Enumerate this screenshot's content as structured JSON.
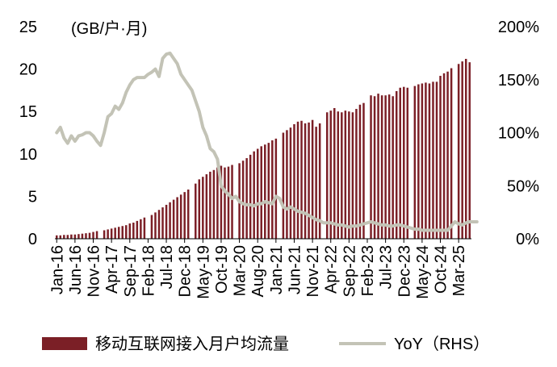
{
  "chart_data": {
    "type": "bar+line",
    "title": "",
    "unit_label": "(GB/户·月)",
    "xlabel": "",
    "ylabel_left": "",
    "ylabel_right": "",
    "ylim_left": [
      0,
      25
    ],
    "ylim_right": [
      0,
      200
    ],
    "y_ticks_left": [
      "0",
      "5",
      "10",
      "15",
      "20",
      "25"
    ],
    "y_ticks_right": [
      "0%",
      "50%",
      "100%",
      "150%",
      "200%"
    ],
    "x_tick_labels": [
      "Jan-16",
      "Jun-16",
      "Nov-16",
      "Apr-17",
      "Sep-17",
      "Feb-18",
      "Jul-18",
      "Dec-18",
      "May-19",
      "Oct-19",
      "Mar-20",
      "Aug-20",
      "Jan-21",
      "Jun-21",
      "Nov-21",
      "Apr-22",
      "Sep-22",
      "Feb-23",
      "Jul-23",
      "Dec-23",
      "May-24",
      "Oct-24",
      "Mar-25"
    ],
    "x_tick_month_index": [
      0,
      5,
      10,
      15,
      20,
      25,
      30,
      35,
      40,
      45,
      50,
      55,
      60,
      65,
      70,
      75,
      80,
      85,
      90,
      95,
      100,
      105,
      110
    ],
    "series": [
      {
        "name": "移动互联网接入月户均流量",
        "axis": "left",
        "kind": "bar",
        "color": "#7b1f26",
        "values": [
          0.4,
          0.4,
          0.45,
          0.45,
          0.5,
          0.5,
          0.55,
          0.6,
          0.65,
          0.7,
          0.8,
          0.9,
          0,
          1.0,
          1.1,
          1.2,
          1.3,
          1.4,
          1.5,
          1.6,
          1.8,
          1.9,
          2.1,
          2.3,
          2.5,
          0,
          2.8,
          3.1,
          3.4,
          3.7,
          4.0,
          4.3,
          4.6,
          4.9,
          5.2,
          5.5,
          5.8,
          0,
          6.5,
          7.0,
          7.3,
          7.6,
          7.9,
          8.1,
          8.4,
          8.6,
          8.4,
          8.5,
          8.7,
          0,
          8.9,
          9.2,
          9.5,
          9.9,
          10.3,
          10.6,
          10.9,
          11.1,
          11.3,
          11.6,
          11.8,
          0,
          12.5,
          12.8,
          13.1,
          13.5,
          13.8,
          13.9,
          13.6,
          13.7,
          14.0,
          13.2,
          13.6,
          0,
          14.9,
          15.1,
          15.4,
          15.0,
          14.9,
          15.1,
          15.0,
          14.9,
          15.3,
          15.8,
          16.0,
          0,
          16.9,
          16.8,
          17.1,
          16.9,
          16.9,
          17.0,
          16.8,
          17.4,
          17.8,
          17.9,
          17.8,
          0,
          18.0,
          18.2,
          18.3,
          18.4,
          18.3,
          18.5,
          18.5,
          19.2,
          19.5,
          19.7,
          20.1,
          0,
          20.6,
          20.9,
          21.2,
          20.8
        ]
      },
      {
        "name": "YoY（RHS）",
        "axis": "right",
        "kind": "line",
        "color": "#c3c3b6",
        "values": [
          100,
          105,
          95,
          90,
          97,
          92,
          97,
          98,
          100,
          100,
          97,
          92,
          88,
          100,
          115,
          118,
          125,
          122,
          128,
          138,
          145,
          150,
          152,
          152,
          152,
          155,
          157,
          160,
          153,
          170,
          174,
          175,
          170,
          165,
          155,
          150,
          145,
          140,
          130,
          120,
          105,
          97,
          85,
          82,
          75,
          50,
          45,
          42,
          38,
          40,
          35,
          33,
          32,
          32,
          31,
          33,
          33,
          35,
          34,
          33,
          40,
          38,
          30,
          28,
          30,
          28,
          26,
          25,
          24,
          22,
          20,
          18,
          17,
          15,
          15,
          15,
          14,
          13,
          13,
          12,
          11,
          12,
          12,
          13,
          14,
          15,
          16,
          15,
          14,
          13,
          13,
          12,
          12,
          13,
          13,
          12,
          11,
          10,
          9,
          9,
          8,
          8,
          8,
          8,
          8,
          8,
          8,
          8,
          12,
          16,
          14,
          13,
          15,
          16,
          16,
          16
        ]
      }
    ],
    "legend_position": "bottom",
    "grid": false,
    "legend": {
      "bar_label": "移动互联网接入月户均流量",
      "line_label": "YoY（RHS）"
    }
  }
}
